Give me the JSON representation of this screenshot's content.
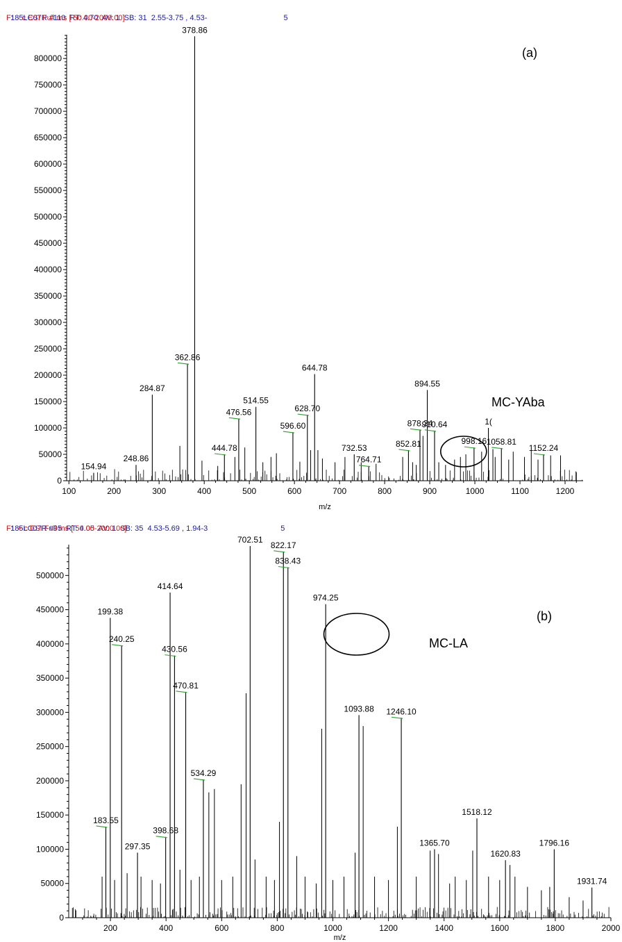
{
  "panel_a": {
    "header_line1": "185LC07R #110  RT: 4.70  AV: 1  SB: 31  2.55-3.75 , 4.53-",
    "header_line1_tail": "5",
    "header_line2": "F:  - c ESI Full ms [ 50.00-2000.00]"
  },
  "panel_b": {
    "header_line1": "185LC07R #95  RT: 4.05  AV: 1  SB: 35  4.53-5.69 , 1.94-3",
    "header_line1_tail": "5",
    "header_line2": "F:  + c ESI Full ms [ 50.00-2000.00]"
  },
  "colors": {
    "header_blue": "#1a1aa6",
    "header_red": "#cc1a1a",
    "label_tick_green": "#2e9e2e",
    "spectrum": "#000000"
  },
  "chart_data": [
    {
      "type": "bar",
      "panel_label": "(a)",
      "annotation": "MC-YAba",
      "xlabel": "m/z",
      "ylabel": "",
      "xlim": [
        95,
        1240
      ],
      "ylim": [
        0,
        845000
      ],
      "xticks": [
        100,
        200,
        300,
        400,
        500,
        600,
        700,
        800,
        900,
        1000,
        1100,
        1200
      ],
      "yticks": [
        0,
        50000,
        100000,
        150000,
        200000,
        250000,
        300000,
        350000,
        400000,
        450000,
        500000,
        550000,
        600000,
        650000,
        700000,
        750000,
        800000
      ],
      "circle_center_mz": 975,
      "labeled_peaks": [
        {
          "mz": 154.94,
          "y": 15000,
          "label": "154.94"
        },
        {
          "mz": 248.86,
          "y": 30000,
          "label": "248.86"
        },
        {
          "mz": 284.87,
          "y": 163000,
          "label": "284.87"
        },
        {
          "mz": 362.86,
          "y": 222000,
          "label": "362.86"
        },
        {
          "mz": 378.86,
          "y": 842000,
          "label": "378.86"
        },
        {
          "mz": 444.78,
          "y": 50000,
          "label": "444.78"
        },
        {
          "mz": 476.56,
          "y": 118000,
          "label": "476.56"
        },
        {
          "mz": 514.55,
          "y": 140000,
          "label": "514.55"
        },
        {
          "mz": 596.6,
          "y": 92000,
          "label": "596.60"
        },
        {
          "mz": 628.7,
          "y": 125000,
          "label": "628.70"
        },
        {
          "mz": 644.78,
          "y": 202000,
          "label": "644.78"
        },
        {
          "mz": 732.53,
          "y": 50000,
          "label": "732.53"
        },
        {
          "mz": 764.71,
          "y": 28000,
          "label": "764.71"
        },
        {
          "mz": 852.81,
          "y": 58000,
          "label": "852.81"
        },
        {
          "mz": 878.34,
          "y": 97000,
          "label": "878.34"
        },
        {
          "mz": 894.55,
          "y": 172000,
          "label": "894.55"
        },
        {
          "mz": 910.64,
          "y": 95000,
          "label": "910.64"
        },
        {
          "mz": 998.16,
          "y": 63000,
          "label": "998.16"
        },
        {
          "mz": 1030.0,
          "y": 100000,
          "label": "1("
        },
        {
          "mz": 1058.81,
          "y": 62000,
          "label": "1058.81"
        },
        {
          "mz": 1152.24,
          "y": 50000,
          "label": "1152.24"
        }
      ],
      "other_peaks": [
        [
          346,
          66000
        ],
        [
          395,
          38000
        ],
        [
          430,
          28000
        ],
        [
          468,
          45000
        ],
        [
          490,
          63000
        ],
        [
          530,
          35000
        ],
        [
          548,
          45000
        ],
        [
          560,
          52000
        ],
        [
          612,
          36000
        ],
        [
          636,
          58000
        ],
        [
          652,
          58000
        ],
        [
          662,
          42000
        ],
        [
          690,
          35000
        ],
        [
          712,
          45000
        ],
        [
          748,
          35000
        ],
        [
          781,
          32000
        ],
        [
          840,
          45000
        ],
        [
          862,
          35000
        ],
        [
          870,
          30000
        ],
        [
          885,
          85000
        ],
        [
          920,
          35000
        ],
        [
          935,
          30000
        ],
        [
          955,
          40000
        ],
        [
          968,
          45000
        ],
        [
          980,
          50000
        ],
        [
          1015,
          55000
        ],
        [
          1040,
          60000
        ],
        [
          1045,
          45000
        ],
        [
          1075,
          40000
        ],
        [
          1085,
          55000
        ],
        [
          1110,
          45000
        ],
        [
          1125,
          58000
        ],
        [
          1140,
          40000
        ],
        [
          1168,
          48000
        ],
        [
          1190,
          48000
        ]
      ]
    },
    {
      "type": "bar",
      "panel_label": "(b)",
      "annotation": "MC-LA",
      "xlabel": "m/z",
      "ylabel": "",
      "xlim": [
        50,
        2000
      ],
      "ylim": [
        0,
        545000
      ],
      "xticks": [
        200,
        400,
        600,
        800,
        1000,
        1200,
        1400,
        1600,
        1800,
        2000
      ],
      "yticks": [
        0,
        50000,
        100000,
        150000,
        200000,
        250000,
        300000,
        350000,
        400000,
        450000,
        500000
      ],
      "circle_center_mz": 1085,
      "labeled_peaks": [
        {
          "mz": 183.55,
          "y": 133000,
          "label": "183.55"
        },
        {
          "mz": 199.38,
          "y": 438000,
          "label": "199.38"
        },
        {
          "mz": 240.25,
          "y": 398000,
          "label": "240.25"
        },
        {
          "mz": 297.35,
          "y": 95000,
          "label": "297.35"
        },
        {
          "mz": 398.68,
          "y": 118000,
          "label": "398.68"
        },
        {
          "mz": 414.64,
          "y": 475000,
          "label": "414.64"
        },
        {
          "mz": 430.56,
          "y": 383000,
          "label": "430.56"
        },
        {
          "mz": 470.81,
          "y": 330000,
          "label": "470.81"
        },
        {
          "mz": 534.29,
          "y": 202000,
          "label": "534.29"
        },
        {
          "mz": 702.51,
          "y": 543000,
          "label": "702.51"
        },
        {
          "mz": 822.17,
          "y": 535000,
          "label": "822.17"
        },
        {
          "mz": 838.43,
          "y": 512000,
          "label": "838.43"
        },
        {
          "mz": 974.25,
          "y": 458000,
          "label": "974.25"
        },
        {
          "mz": 1093.88,
          "y": 296000,
          "label": "1093.88"
        },
        {
          "mz": 1246.1,
          "y": 292000,
          "label": "1246.10"
        },
        {
          "mz": 1365.7,
          "y": 100000,
          "label": "1365.70"
        },
        {
          "mz": 1518.12,
          "y": 145000,
          "label": "1518.12"
        },
        {
          "mz": 1620.83,
          "y": 84000,
          "label": "1620.83"
        },
        {
          "mz": 1796.16,
          "y": 100000,
          "label": "1796.16"
        },
        {
          "mz": 1931.74,
          "y": 44000,
          "label": "1931.74"
        }
      ],
      "other_peaks": [
        [
          170,
          60000
        ],
        [
          215,
          55000
        ],
        [
          260,
          65000
        ],
        [
          310,
          60000
        ],
        [
          350,
          55000
        ],
        [
          380,
          50000
        ],
        [
          450,
          70000
        ],
        [
          490,
          55000
        ],
        [
          520,
          60000
        ],
        [
          554,
          183000
        ],
        [
          574,
          188000
        ],
        [
          600,
          55000
        ],
        [
          640,
          60000
        ],
        [
          670,
          195000
        ],
        [
          688,
          328000
        ],
        [
          720,
          85000
        ],
        [
          760,
          60000
        ],
        [
          790,
          55000
        ],
        [
          808,
          140000
        ],
        [
          870,
          90000
        ],
        [
          900,
          60000
        ],
        [
          940,
          50000
        ],
        [
          960,
          276000
        ],
        [
          1000,
          55000
        ],
        [
          1040,
          60000
        ],
        [
          1080,
          95000
        ],
        [
          1109,
          280000
        ],
        [
          1150,
          60000
        ],
        [
          1200,
          55000
        ],
        [
          1232,
          133000
        ],
        [
          1300,
          60000
        ],
        [
          1350,
          98000
        ],
        [
          1380,
          93000
        ],
        [
          1420,
          50000
        ],
        [
          1440,
          60000
        ],
        [
          1480,
          55000
        ],
        [
          1503,
          98000
        ],
        [
          1560,
          60000
        ],
        [
          1600,
          55000
        ],
        [
          1637,
          77000
        ],
        [
          1655,
          60000
        ],
        [
          1700,
          45000
        ],
        [
          1750,
          40000
        ],
        [
          1780,
          45000
        ],
        [
          1850,
          30000
        ],
        [
          1900,
          25000
        ]
      ]
    }
  ]
}
